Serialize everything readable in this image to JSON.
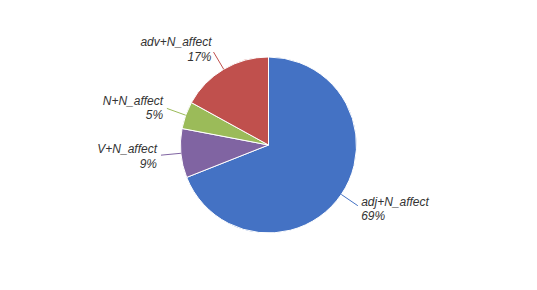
{
  "chart_data": {
    "type": "pie",
    "categories": [
      "adj+N_affect",
      "V+N_affect",
      "N+N_affect",
      "adv+N_affect"
    ],
    "values": [
      69,
      9,
      5,
      17
    ],
    "value_labels": [
      "69%",
      "9%",
      "5%",
      "17%"
    ],
    "colors": [
      "#4472C4",
      "#8064A2",
      "#9BBB59",
      "#C0504D"
    ]
  }
}
